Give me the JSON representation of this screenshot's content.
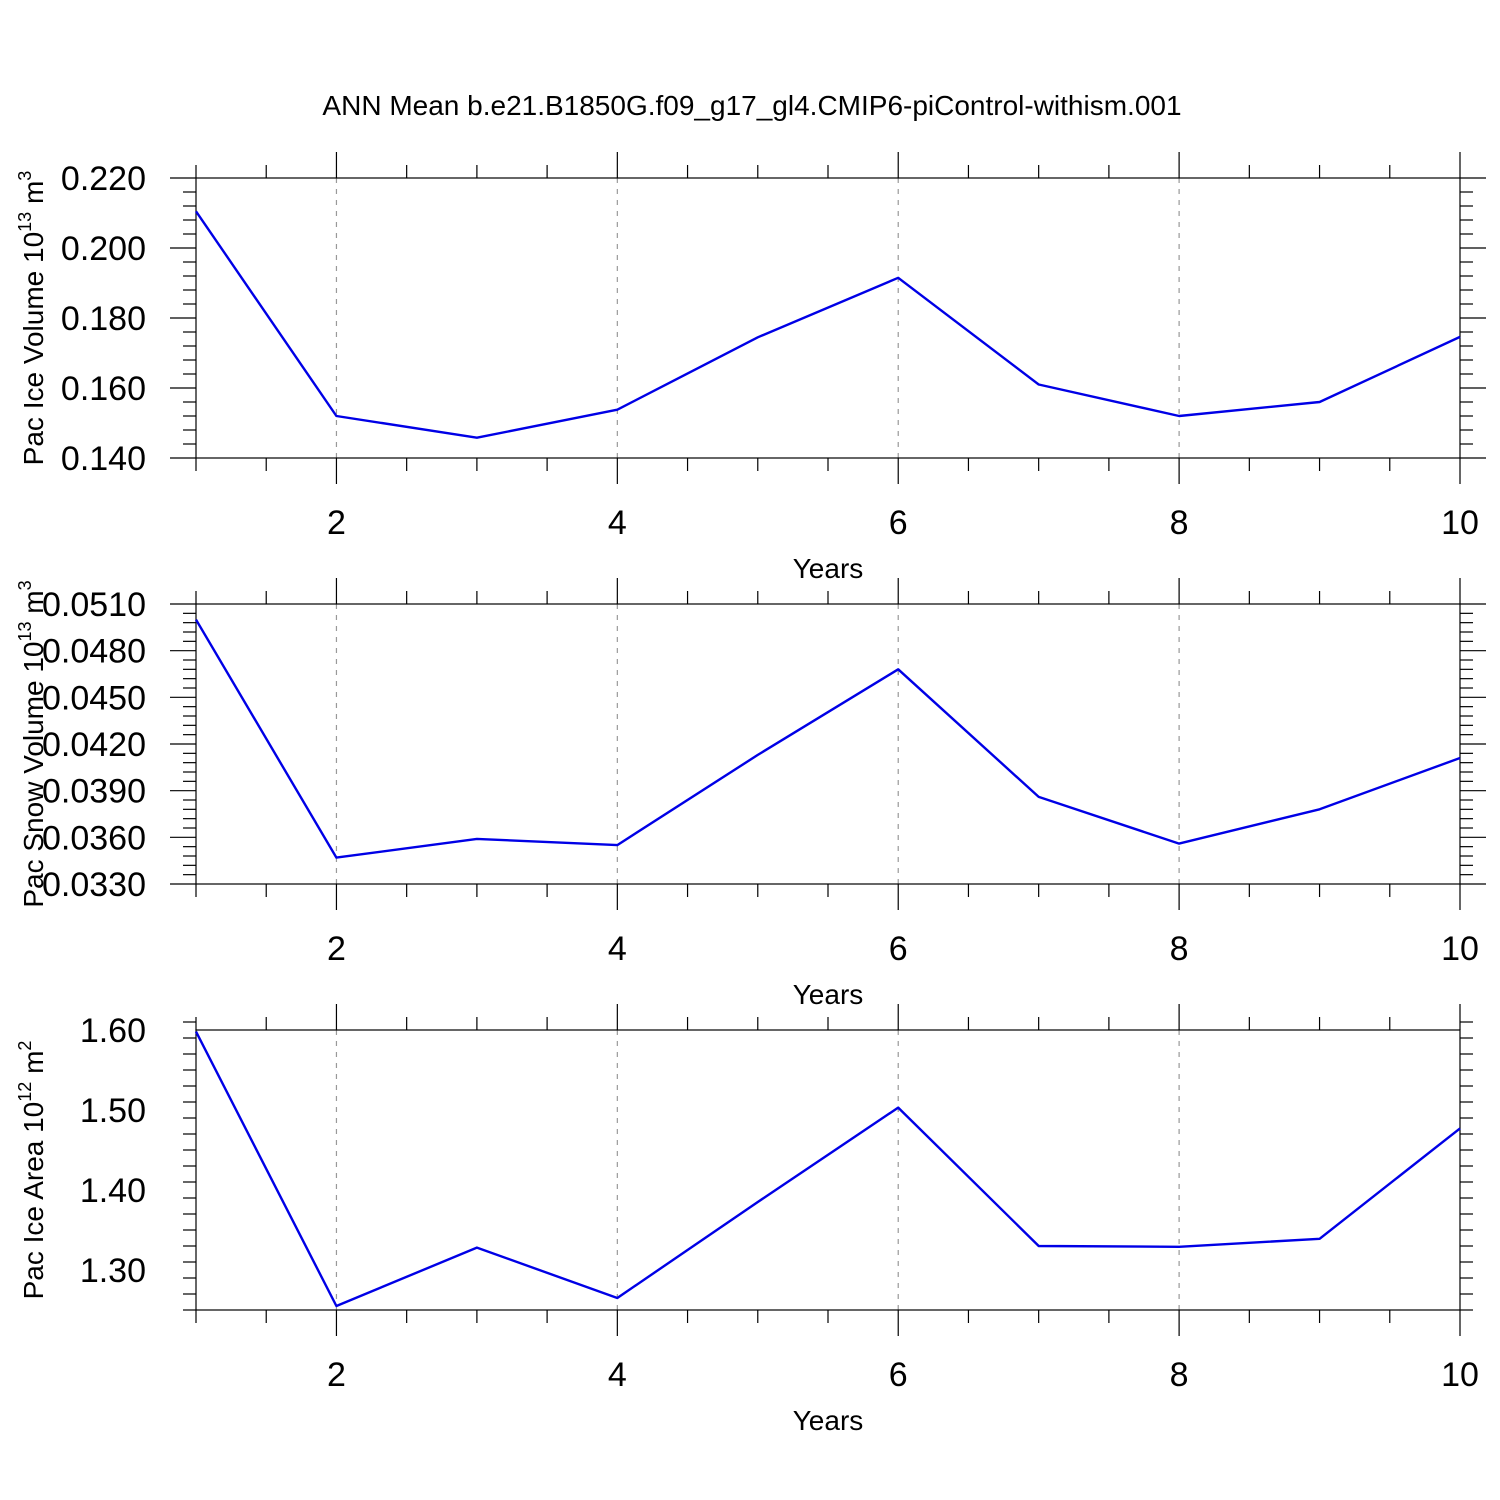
{
  "figure": {
    "title": "ANN Mean b.e21.B1850G.f09_g17_gl4.CMIP6-piControl-withism.001",
    "line_color": "#0000e6"
  },
  "chart_data": [
    {
      "type": "line",
      "xlabel": "Years",
      "ylabel": {
        "text": "Pac Ice Volume 10",
        "sup1": "13",
        "mid": " m",
        "sup2": "3"
      },
      "x": [
        1,
        2,
        3,
        4,
        5,
        6,
        7,
        8,
        9,
        10
      ],
      "values": [
        0.2105,
        0.152,
        0.1458,
        0.1538,
        0.1745,
        0.1915,
        0.161,
        0.152,
        0.156,
        0.1746
      ],
      "xlim": [
        1,
        10
      ],
      "ylim": [
        0.14,
        0.22
      ],
      "x_major_ticks": [
        2,
        4,
        6,
        8,
        10
      ],
      "x_tick_labels": [
        "2",
        "4",
        "6",
        "8",
        "10"
      ],
      "y_major_ticks": [
        0.14,
        0.16,
        0.18,
        0.2,
        0.22
      ],
      "y_tick_labels": [
        "0.140",
        "0.160",
        "0.180",
        "0.200",
        "0.220"
      ],
      "y_minor_step": 0.004,
      "grid": "vertical dashed at x major ticks"
    },
    {
      "type": "line",
      "xlabel": "Years",
      "ylabel": {
        "text": "Pac Snow Volume 10",
        "sup1": "13",
        "mid": " m",
        "sup2": "3"
      },
      "x": [
        1,
        2,
        3,
        4,
        5,
        6,
        7,
        8,
        9,
        10
      ],
      "values": [
        0.05,
        0.0347,
        0.0359,
        0.0355,
        0.0413,
        0.0468,
        0.0386,
        0.0356,
        0.0378,
        0.0411
      ],
      "xlim": [
        1,
        10
      ],
      "ylim": [
        0.033,
        0.051
      ],
      "x_major_ticks": [
        2,
        4,
        6,
        8,
        10
      ],
      "x_tick_labels": [
        "2",
        "4",
        "6",
        "8",
        "10"
      ],
      "y_major_ticks": [
        0.033,
        0.036,
        0.039,
        0.042,
        0.045,
        0.048,
        0.051
      ],
      "y_tick_labels": [
        "0.0330",
        "0.0360",
        "0.0390",
        "0.0420",
        "0.0450",
        "0.0480",
        "0.0510"
      ],
      "y_minor_step": 0.0006,
      "grid": "vertical dashed at x major ticks"
    },
    {
      "type": "line",
      "xlabel": "Years",
      "ylabel": {
        "text": "Pac Ice Area 10",
        "sup1": "12",
        "mid": " m",
        "sup2": "2"
      },
      "x": [
        1,
        2,
        3,
        4,
        5,
        6,
        7,
        8,
        9,
        10
      ],
      "values": [
        1.598,
        1.255,
        1.328,
        1.265,
        1.385,
        1.503,
        1.33,
        1.329,
        1.339,
        1.477
      ],
      "xlim": [
        1,
        10
      ],
      "ylim": [
        1.25,
        1.6
      ],
      "x_major_ticks": [
        2,
        4,
        6,
        8,
        10
      ],
      "x_tick_labels": [
        "2",
        "4",
        "6",
        "8",
        "10"
      ],
      "y_major_ticks": [
        1.3,
        1.4,
        1.5,
        1.6
      ],
      "y_tick_labels": [
        "1.30",
        "1.40",
        "1.50",
        "1.60"
      ],
      "y_minor_step": 0.02,
      "grid": "vertical dashed at x major ticks"
    }
  ]
}
